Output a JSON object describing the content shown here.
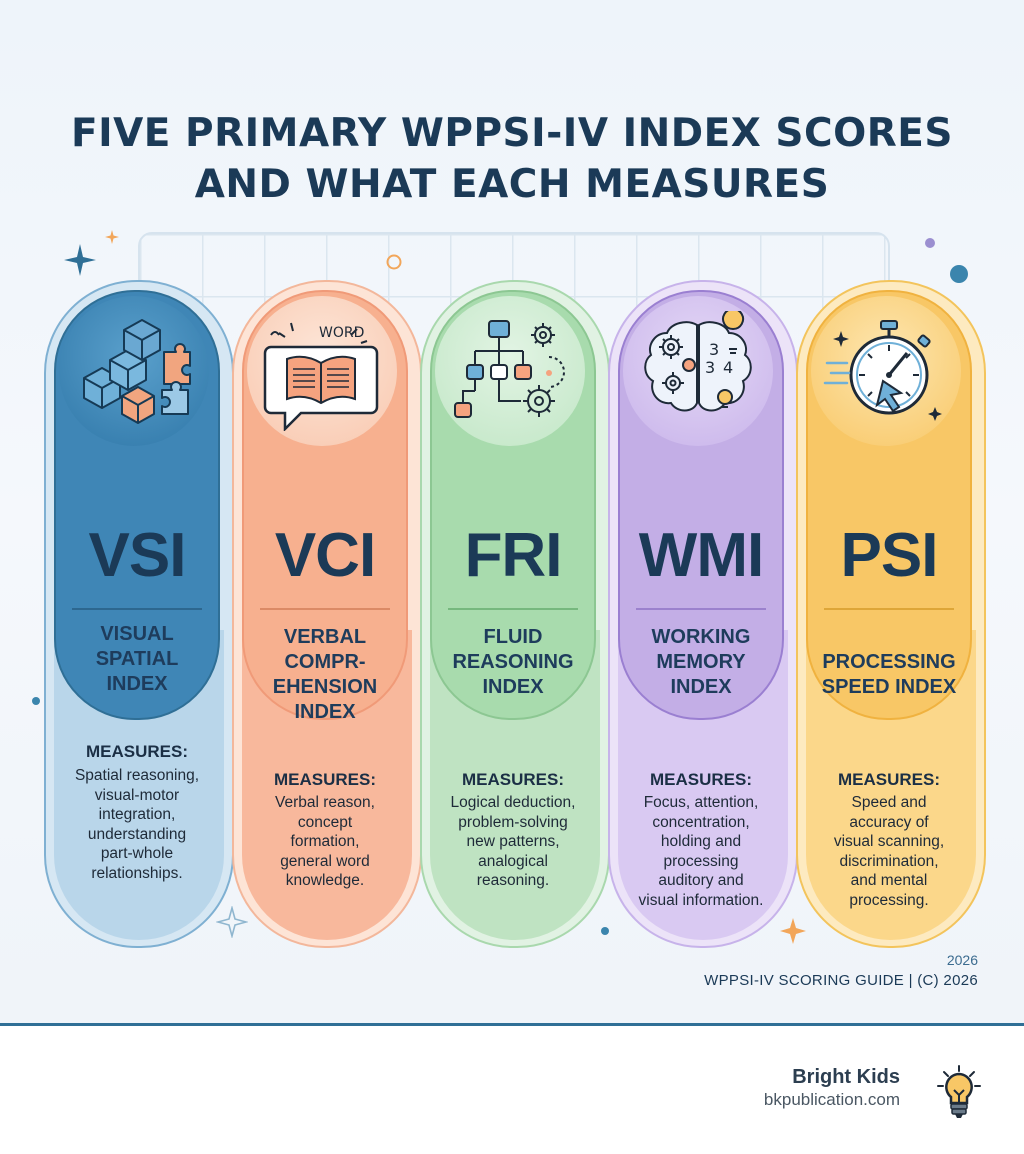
{
  "title": {
    "line1": "FIVE PRIMARY WPPSI-IV INDEX SCORES",
    "line2": "AND WHAT EACH MEASURES"
  },
  "cards": [
    {
      "abbr": "VSI",
      "name": "VISUAL\nSPATIAL\nINDEX",
      "measures_heading": "MEASURES:",
      "measures": "Spatial reasoning,\nvisual-motor\nintegration,\nunderstanding\npart-whole\nrelationships.",
      "icon": "cubes-puzzle-icon",
      "color": "#3f86b6"
    },
    {
      "abbr": "VCI",
      "name": "VERBAL\nCOMPR-\nEHENSION\nINDEX",
      "measures_heading": "MEASURES:",
      "measures": "Verbal reason,\nconcept\nformation,\ngeneral word\nknowledge.",
      "icon": "book-speech-bubble-icon",
      "color": "#f5a888",
      "icon_words": "WORD"
    },
    {
      "abbr": "FRI",
      "name": "FLUID\nREASONING\nINDEX",
      "measures_heading": "MEASURES:",
      "measures": "Logical deduction,\nproblem-solving\nnew patterns,\nanalogical\nreasoning.",
      "icon": "flowchart-gears-icon",
      "color": "#9fd3a4"
    },
    {
      "abbr": "WMI",
      "name": "WORKING\nMEMORY\nINDEX",
      "measures_heading": "MEASURES:",
      "measures": "Focus, attention,\nconcentration,\nholding and\nprocessing\nauditory and\nvisual information.",
      "icon": "brain-gears-icon",
      "color": "#c3aee6",
      "icon_digits": [
        "3",
        "3",
        "4"
      ]
    },
    {
      "abbr": "PSI",
      "name": "PROCESSING\nSPEED INDEX",
      "measures_heading": "MEASURES:",
      "measures": "Speed and\naccuracy of\nvisual scanning,\ndiscrimination,\nand mental\nprocessing.",
      "icon": "stopwatch-cursor-icon",
      "color": "#f8c766"
    }
  ],
  "footer": {
    "year": "2026",
    "guide": "WPPSI-IV SCORING GUIDE  |  (C) 2026",
    "brand_name": "Bright Kids",
    "brand_url": "bkpublication.com",
    "brand_icon": "lightbulb-icon"
  }
}
